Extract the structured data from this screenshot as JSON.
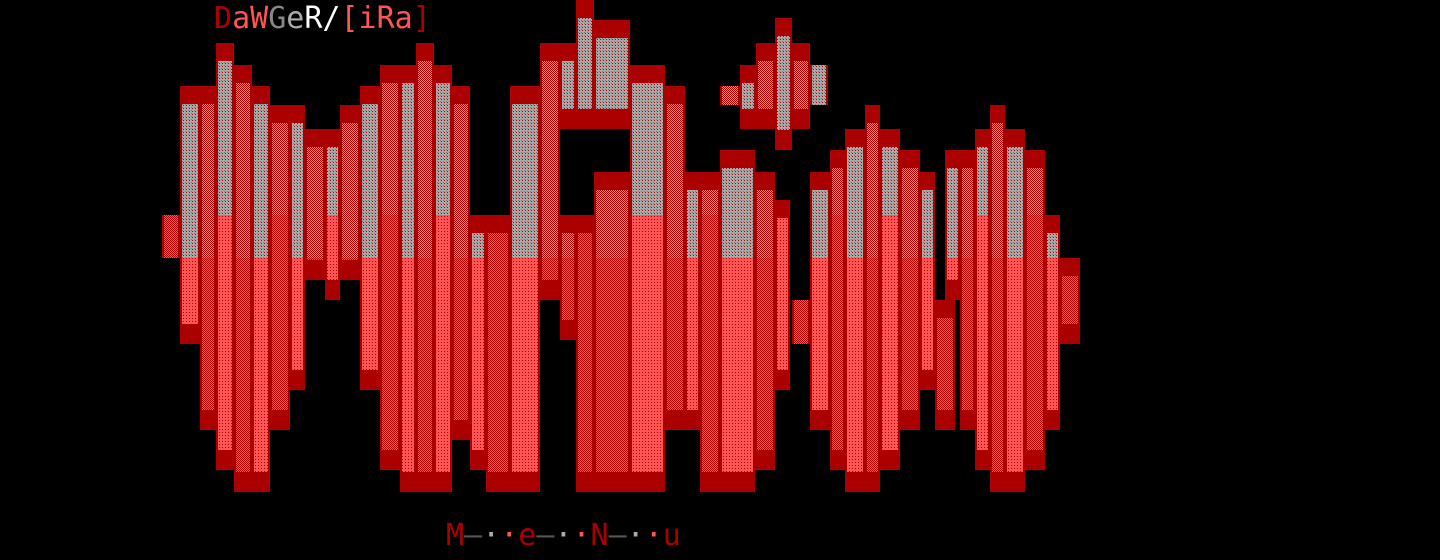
{
  "title": {
    "chars": [
      {
        "ch": "D",
        "color": "#aa0000"
      },
      {
        "ch": "a",
        "color": "#ff5555"
      },
      {
        "ch": "W",
        "color": "#ff5555"
      },
      {
        "ch": "G",
        "color": "#888888"
      },
      {
        "ch": "e",
        "color": "#aaaaaa"
      },
      {
        "ch": "R",
        "color": "#ffffff"
      },
      {
        "ch": "/",
        "color": "#ffffff"
      },
      {
        "ch": "[",
        "color": "#ff5555"
      },
      {
        "ch": "i",
        "color": "#ff5555"
      },
      {
        "ch": "R",
        "color": "#ff5555"
      },
      {
        "ch": "a",
        "color": "#ff5555"
      },
      {
        "ch": "]",
        "color": "#aa0000"
      }
    ]
  },
  "footer": {
    "chars": [
      {
        "ch": "M",
        "color": "#aa0000"
      },
      {
        "ch": "—",
        "color": "#555555"
      },
      {
        "ch": "·",
        "color": "#aaaaaa"
      },
      {
        "ch": "·",
        "color": "#ff5555"
      },
      {
        "ch": "e",
        "color": "#aa0000"
      },
      {
        "ch": "—",
        "color": "#555555"
      },
      {
        "ch": "·",
        "color": "#aaaaaa"
      },
      {
        "ch": "·",
        "color": "#ff5555"
      },
      {
        "ch": "N",
        "color": "#aa0000"
      },
      {
        "ch": "—",
        "color": "#555555"
      },
      {
        "ch": "·",
        "color": "#aaaaaa"
      },
      {
        "ch": "·",
        "color": "#ff5555"
      },
      {
        "ch": "u",
        "color": "#aa0000"
      }
    ]
  },
  "colors": {
    "dark_red": "#aa0000",
    "bright_red": "#ff5555",
    "gray": "#aaaaaa",
    "background": "#000000"
  }
}
